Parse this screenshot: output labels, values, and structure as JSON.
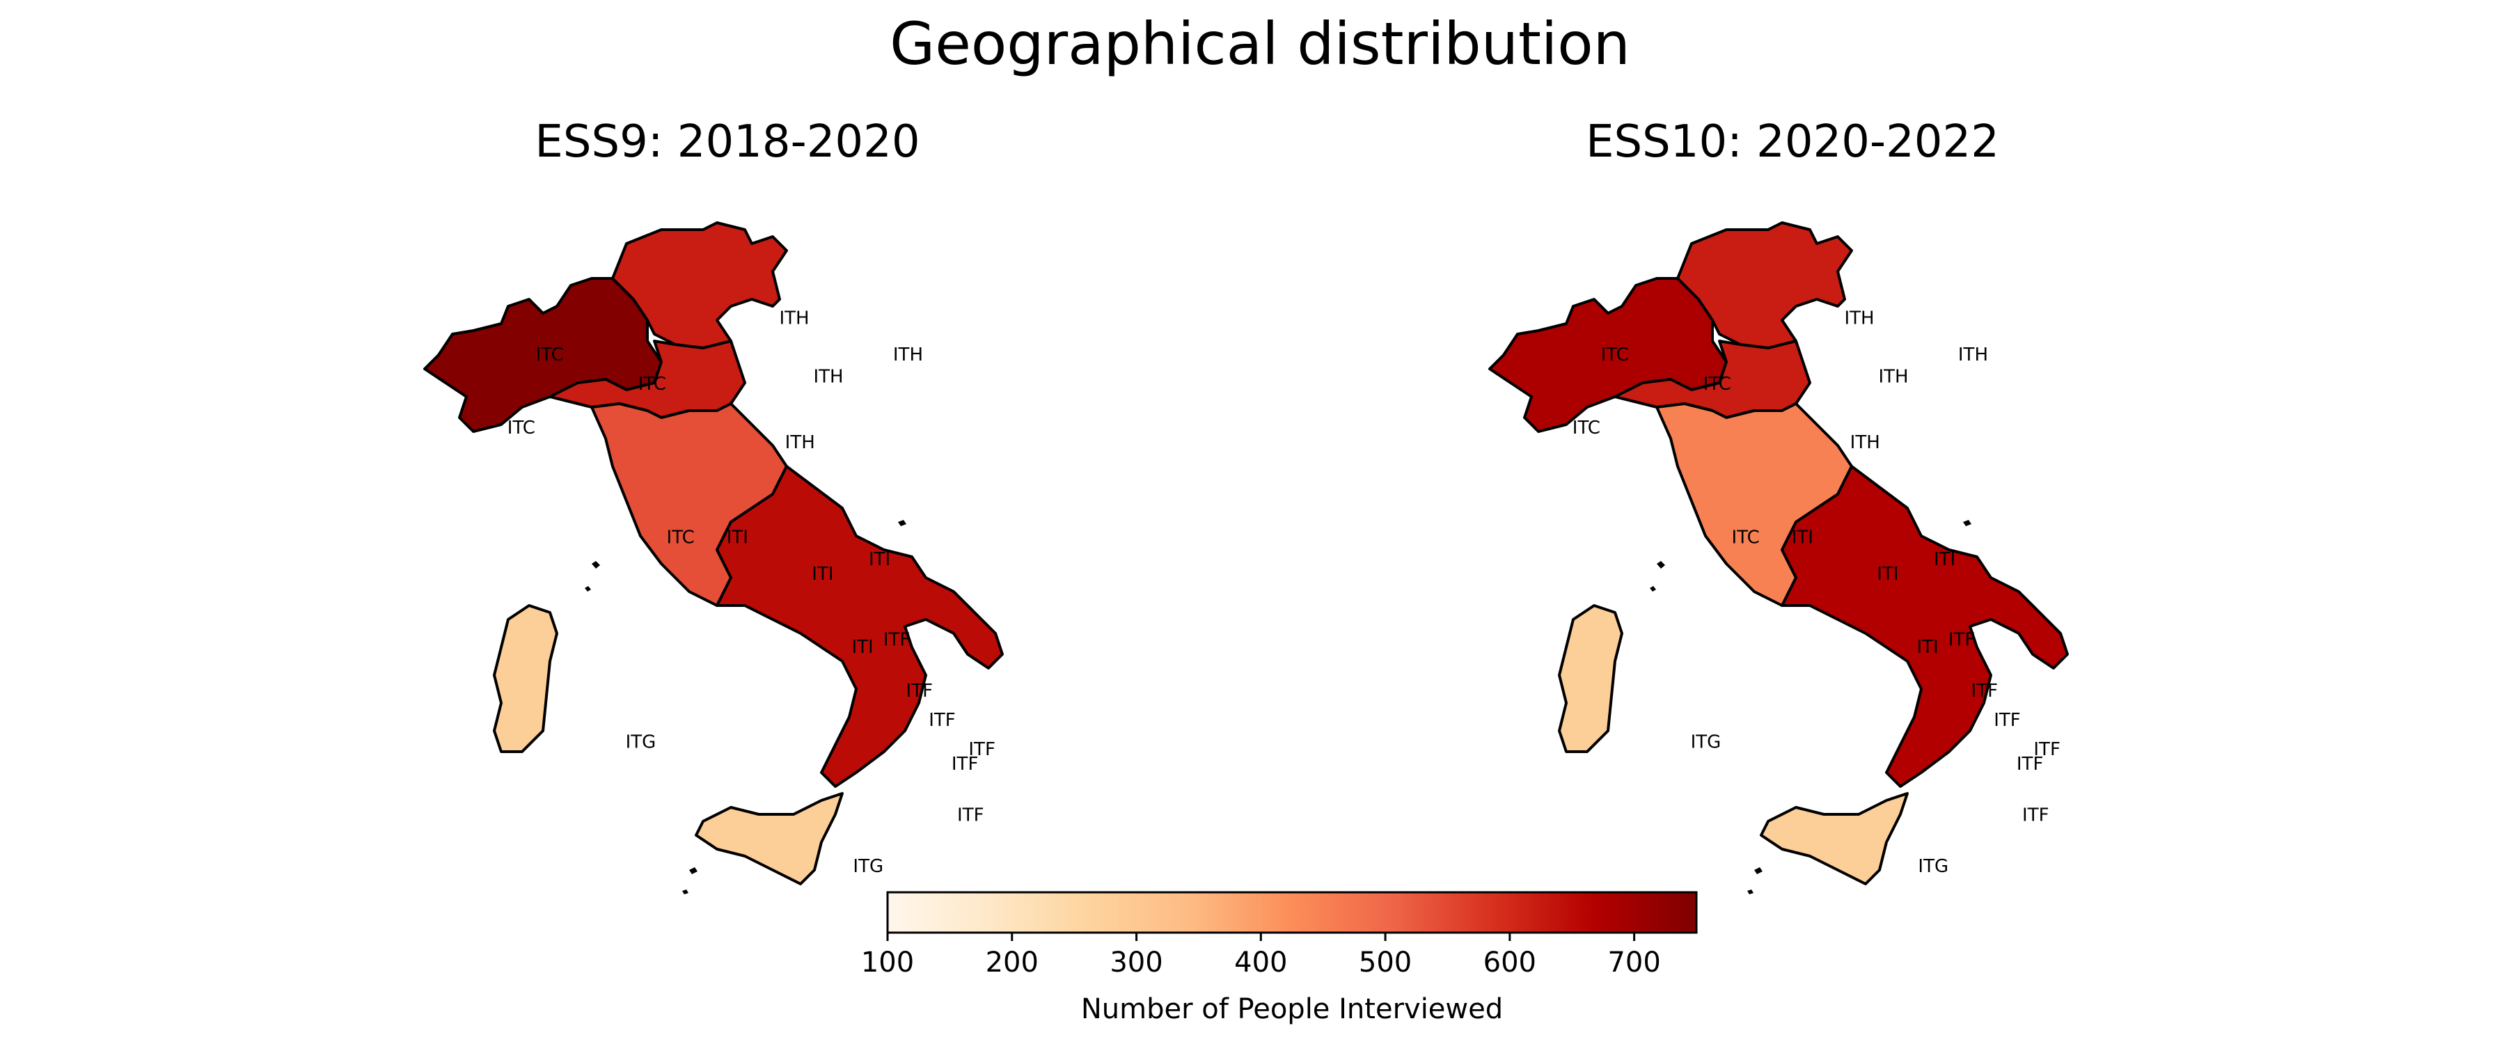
{
  "figure": {
    "title": "Geographical distribution"
  },
  "colormap": {
    "name": "OrRd",
    "stops": [
      "#fff7ec",
      "#fee8c8",
      "#fdd49e",
      "#fdbb84",
      "#fc8d59",
      "#ef6548",
      "#d7301f",
      "#b30000",
      "#7f0000"
    ]
  },
  "colorbar": {
    "label": "Number of People Interviewed",
    "min": 100,
    "max": 750,
    "ticks": [
      100,
      200,
      300,
      400,
      500,
      600,
      700
    ]
  },
  "maps": [
    {
      "id": "ess9",
      "title": "ESS9: 2018-2020",
      "regions": [
        {
          "code": "ITC",
          "value": 745,
          "labels": [
            [
              0.22,
              0.21
            ],
            [
              0.4,
              0.25
            ],
            [
              0.17,
              0.31
            ],
            [
              0.45,
              0.46
            ]
          ]
        },
        {
          "code": "ITH",
          "value": 620,
          "labels": [
            [
              0.65,
              0.16
            ],
            [
              0.85,
              0.21
            ],
            [
              0.71,
              0.24
            ],
            [
              0.66,
              0.33
            ]
          ]
        },
        {
          "code": "ITI",
          "value": 540,
          "labels": [
            [
              0.55,
              0.46
            ],
            [
              0.7,
              0.51
            ],
            [
              0.8,
              0.49
            ],
            [
              0.77,
              0.61
            ]
          ]
        },
        {
          "code": "ITF",
          "value": 650,
          "labels": [
            [
              0.83,
              0.6
            ],
            [
              0.87,
              0.67
            ],
            [
              0.91,
              0.71
            ],
            [
              0.98,
              0.75
            ],
            [
              0.95,
              0.77
            ],
            [
              0.96,
              0.84
            ]
          ]
        },
        {
          "code": "ITG",
          "value": 280,
          "labels": [
            [
              0.38,
              0.74
            ],
            [
              0.78,
              0.91
            ]
          ]
        }
      ]
    },
    {
      "id": "ess10",
      "title": "ESS10: 2020-2022",
      "regions": [
        {
          "code": "ITC",
          "value": 680,
          "labels": [
            [
              0.22,
              0.21
            ],
            [
              0.4,
              0.25
            ],
            [
              0.17,
              0.31
            ],
            [
              0.45,
              0.46
            ]
          ]
        },
        {
          "code": "ITH",
          "value": 620,
          "labels": [
            [
              0.65,
              0.16
            ],
            [
              0.85,
              0.21
            ],
            [
              0.71,
              0.24
            ],
            [
              0.66,
              0.33
            ]
          ]
        },
        {
          "code": "ITI",
          "value": 450,
          "labels": [
            [
              0.55,
              0.46
            ],
            [
              0.7,
              0.51
            ],
            [
              0.8,
              0.49
            ],
            [
              0.77,
              0.61
            ]
          ]
        },
        {
          "code": "ITF",
          "value": 670,
          "labels": [
            [
              0.83,
              0.6
            ],
            [
              0.87,
              0.67
            ],
            [
              0.91,
              0.71
            ],
            [
              0.98,
              0.75
            ],
            [
              0.95,
              0.77
            ],
            [
              0.96,
              0.84
            ]
          ]
        },
        {
          "code": "ITG",
          "value": 280,
          "labels": [
            [
              0.38,
              0.74
            ],
            [
              0.78,
              0.91
            ]
          ]
        }
      ]
    }
  ]
}
